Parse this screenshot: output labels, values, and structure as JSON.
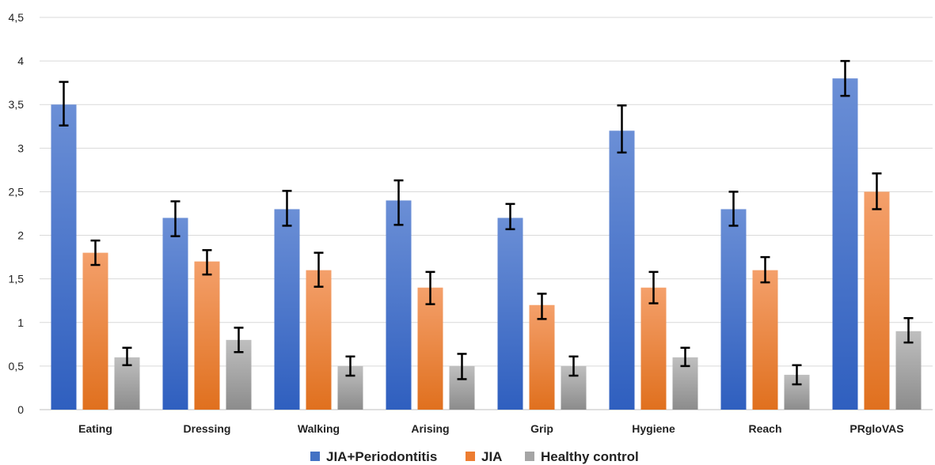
{
  "chart_data": {
    "type": "bar",
    "categories": [
      "Eating",
      "Dressing",
      "Walking",
      "Arising",
      "Grip",
      "Hygiene",
      "Reach",
      "PRgloVAS"
    ],
    "series": [
      {
        "name": "JIA+Periodontitis",
        "color": "#4472C4",
        "values": [
          3.5,
          2.2,
          2.3,
          2.4,
          2.2,
          3.2,
          2.3,
          3.8
        ],
        "err_low": [
          3.26,
          1.99,
          2.11,
          2.12,
          2.07,
          2.95,
          2.11,
          3.6
        ],
        "err_high": [
          3.76,
          2.39,
          2.51,
          2.63,
          2.36,
          3.49,
          2.5,
          4.0
        ]
      },
      {
        "name": "JIA",
        "color": "#ED7D31",
        "values": [
          1.8,
          1.7,
          1.6,
          1.4,
          1.2,
          1.4,
          1.6,
          2.5
        ],
        "err_low": [
          1.66,
          1.55,
          1.41,
          1.21,
          1.04,
          1.22,
          1.46,
          2.3
        ],
        "err_high": [
          1.94,
          1.83,
          1.8,
          1.58,
          1.33,
          1.58,
          1.75,
          2.71
        ]
      },
      {
        "name": "Healthy control",
        "color": "#A5A5A5",
        "values": [
          0.6,
          0.8,
          0.5,
          0.5,
          0.5,
          0.6,
          0.4,
          0.9
        ],
        "err_low": [
          0.51,
          0.66,
          0.39,
          0.35,
          0.39,
          0.5,
          0.29,
          0.77
        ],
        "err_high": [
          0.71,
          0.94,
          0.61,
          0.64,
          0.61,
          0.71,
          0.51,
          1.05
        ]
      }
    ],
    "yticks": [
      "0",
      "0,5",
      "1",
      "1,5",
      "2",
      "2,5",
      "3",
      "3,5",
      "4",
      "4,5"
    ],
    "ylim": [
      0,
      4.5
    ],
    "grid": true,
    "legend_position": "bottom",
    "title": "",
    "xlabel": "",
    "ylabel": ""
  }
}
